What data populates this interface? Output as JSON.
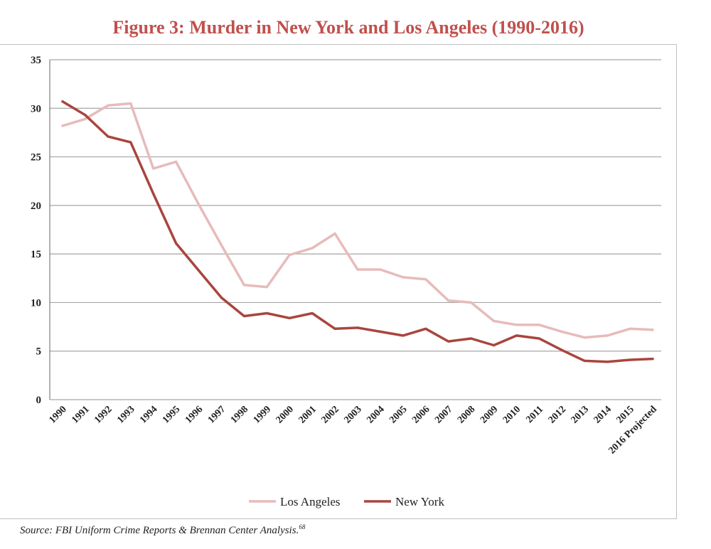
{
  "title": "Figure 3: Murder in New York and Los Angeles (1990-2016)",
  "source_text": "Source: FBI Uniform Crime Reports & Brennan Center Analysis.",
  "source_note": "68",
  "colors": {
    "title": "#c0504d",
    "los_angeles": "#e7bbbb",
    "new_york": "#a9453e",
    "grid": "#a6a6a6"
  },
  "chart_data": {
    "type": "line",
    "title": "Figure 3: Murder in New York and Los Angeles (1990-2016)",
    "xlabel": "",
    "ylabel": "",
    "ylim": [
      0,
      35
    ],
    "yticks": [
      0,
      5,
      10,
      15,
      20,
      25,
      30,
      35
    ],
    "grid": true,
    "legend_position": "bottom",
    "categories": [
      "1990",
      "1991",
      "1992",
      "1993",
      "1994",
      "1995",
      "1996",
      "1997",
      "1998",
      "1999",
      "2000",
      "2001",
      "2002",
      "2003",
      "2004",
      "2005",
      "2006",
      "2007",
      "2008",
      "2009",
      "2010",
      "2011",
      "2012",
      "2013",
      "2014",
      "2015",
      "2016 Projected"
    ],
    "series": [
      {
        "name": "Los Angeles",
        "color": "#e7bbbb",
        "values": [
          28.2,
          28.9,
          30.3,
          30.5,
          23.8,
          24.5,
          20.1,
          15.9,
          11.8,
          11.6,
          14.9,
          15.6,
          17.1,
          13.4,
          13.4,
          12.6,
          12.4,
          10.2,
          10.0,
          8.1,
          7.7,
          7.7,
          7.0,
          6.4,
          6.6,
          7.3,
          7.2
        ]
      },
      {
        "name": "New York",
        "color": "#a9453e",
        "values": [
          30.7,
          29.3,
          27.1,
          26.5,
          21.2,
          16.1,
          13.3,
          10.5,
          8.6,
          8.9,
          8.4,
          8.9,
          7.3,
          7.4,
          7.0,
          6.6,
          7.3,
          6.0,
          6.3,
          5.6,
          6.6,
          6.3,
          5.1,
          4.0,
          3.9,
          4.1,
          4.2
        ]
      }
    ]
  }
}
